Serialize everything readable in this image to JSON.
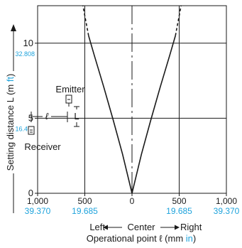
{
  "colors": {
    "ink": "#1a1a1a",
    "accent": "#1ea3dc"
  },
  "chart_data": {
    "type": "line",
    "title": "",
    "xlabel": "Operational point ℓ (mm in)",
    "xlabel_main": "Operational point ℓ (mm ",
    "xlabel_alt_unit": "in",
    "xlabel_end": ")",
    "ylabel": "Setting distance L (m ft)",
    "ylabel_main": "Setting distance L (m ",
    "ylabel_alt_unit": "ft",
    "ylabel_end": ")",
    "xlim": [
      -1000,
      1000
    ],
    "ylim": [
      0,
      12.5
    ],
    "grid": true,
    "x_ticks": [
      {
        "value": -1000,
        "mm": "1,000",
        "inch": "39.370"
      },
      {
        "value": -500,
        "mm": "500",
        "inch": "19.685"
      },
      {
        "value": 0,
        "mm": "0",
        "inch": ""
      },
      {
        "value": 500,
        "mm": "500",
        "inch": "19.685"
      },
      {
        "value": 1000,
        "mm": "1,000",
        "inch": "39.370"
      }
    ],
    "y_ticks": [
      {
        "value": 0,
        "m": "0",
        "ft": ""
      },
      {
        "value": 5,
        "m": "5",
        "ft": "16.404"
      },
      {
        "value": 10,
        "m": "10",
        "ft": "32.808"
      }
    ],
    "direction_labels": {
      "left": "Left",
      "center": "Center",
      "right": "Right"
    },
    "series": [
      {
        "side": "right",
        "x": [
          0,
          100,
          200,
          300,
          400,
          460
        ],
        "y": [
          0,
          2.6,
          4.9,
          7.1,
          9.2,
          10.5
        ],
        "dashed_x": [
          460,
          520
        ],
        "dashed_y": [
          10.5,
          12.5
        ]
      },
      {
        "side": "left",
        "x": [
          0,
          -100,
          -200,
          -300,
          -400,
          -460
        ],
        "y": [
          0,
          2.6,
          4.9,
          7.1,
          9.2,
          10.5
        ],
        "dashed_x": [
          -460,
          -520
        ],
        "dashed_y": [
          10.5,
          12.5
        ]
      }
    ],
    "inset": {
      "emitter": "Emitter",
      "receiver": "Receiver",
      "l_small": "ℓ",
      "l_big": "L"
    }
  }
}
